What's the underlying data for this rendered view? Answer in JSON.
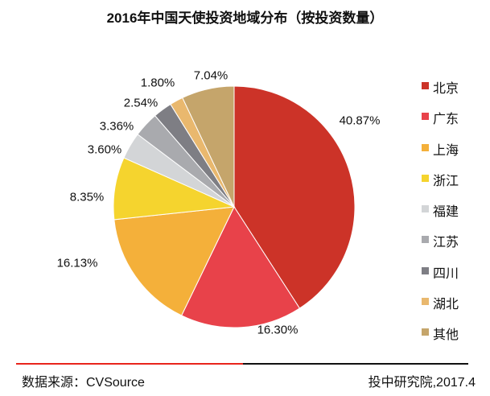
{
  "chart_data": {
    "type": "pie",
    "title": "2016年中国天使投资地域分布（按投资数量）",
    "categories": [
      "北京",
      "广东",
      "上海",
      "浙江",
      "福建",
      "江苏",
      "四川",
      "湖北",
      "其他"
    ],
    "values": [
      40.87,
      16.3,
      16.13,
      8.35,
      3.6,
      3.36,
      2.54,
      1.8,
      7.04
    ],
    "labels": [
      "40.87%",
      "16.30%",
      "16.13%",
      "8.35%",
      "3.60%",
      "3.36%",
      "2.54%",
      "1.80%",
      "7.04%"
    ],
    "colors": [
      "#CC3328",
      "#E8424A",
      "#F4B03A",
      "#F5D42E",
      "#D3D5D7",
      "#A9AAAE",
      "#7E7E84",
      "#E9B86E",
      "#C5A56B"
    ],
    "start": "12 o'clock, clockwise",
    "legend_position": "right"
  },
  "footer": {
    "source": "数据来源：CVSource",
    "org": "投中研究院,2017.4"
  }
}
